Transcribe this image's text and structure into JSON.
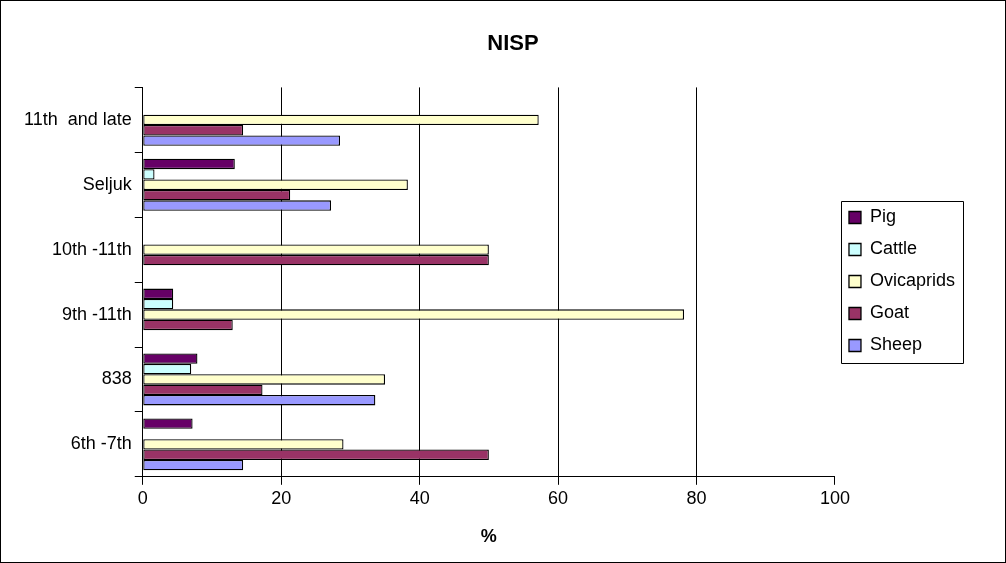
{
  "chart_data": {
    "type": "bar",
    "orientation": "horizontal",
    "title": "NISP",
    "xlabel": "%",
    "categories": [
      "11th  and late",
      "Seljuk",
      "10th -11th",
      "9th -11th",
      "838",
      "6th -7th"
    ],
    "series": [
      {
        "name": "Pig",
        "color": "#660066",
        "values": [
          null,
          13.3,
          null,
          4.4,
          7.9,
          7.2
        ]
      },
      {
        "name": "Cattle",
        "color": "#ccffff",
        "values": [
          null,
          1.7,
          null,
          4.4,
          7,
          null
        ]
      },
      {
        "name": "Ovicaprids",
        "color": "#ffffcc",
        "values": [
          57.2,
          38.3,
          50,
          78.2,
          35,
          29
        ]
      },
      {
        "name": "Goat",
        "color": "#993366",
        "values": [
          14.5,
          21.3,
          50,
          13,
          17.3,
          50
        ]
      },
      {
        "name": "Sheep",
        "color": "#9999ff",
        "values": [
          28.5,
          27.2,
          null,
          null,
          33.6,
          14.5
        ]
      }
    ],
    "xlim": [
      0,
      100
    ],
    "xticks": [
      0,
      20,
      40,
      60,
      80,
      100
    ],
    "grid": "x",
    "legend": "right"
  }
}
